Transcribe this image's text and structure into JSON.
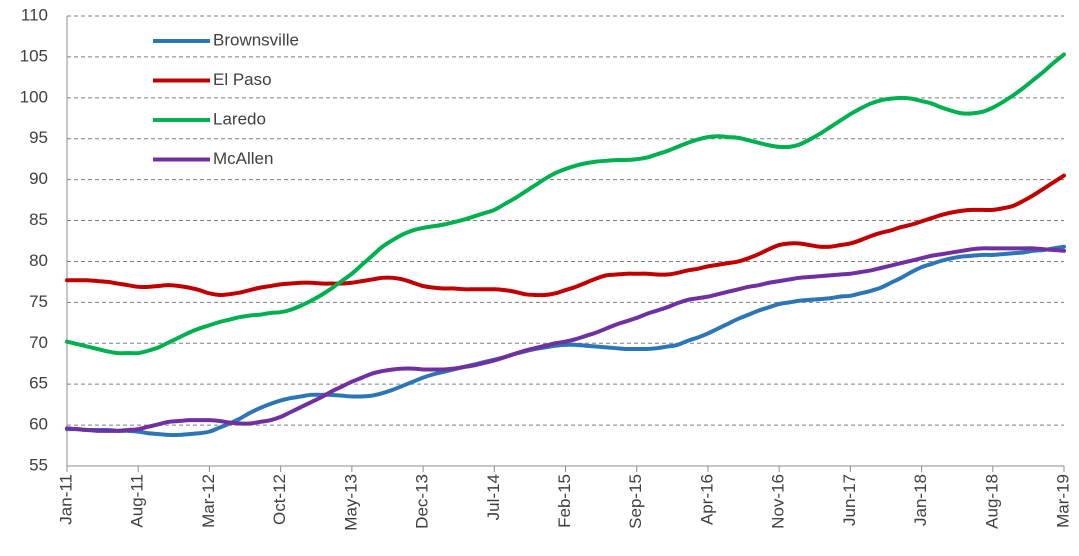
{
  "chart_data": {
    "type": "line",
    "categories": [
      "Jan-11",
      null,
      null,
      null,
      null,
      null,
      null,
      "Aug-11",
      null,
      null,
      null,
      null,
      null,
      null,
      "Mar-12",
      null,
      null,
      null,
      null,
      null,
      null,
      "Oct-12",
      null,
      null,
      null,
      null,
      null,
      null,
      "May-13",
      null,
      null,
      null,
      null,
      null,
      null,
      "Dec-13",
      null,
      null,
      null,
      null,
      null,
      null,
      "Jul-14",
      null,
      null,
      null,
      null,
      null,
      null,
      "Feb-15",
      null,
      null,
      null,
      null,
      null,
      null,
      "Sep-15",
      null,
      null,
      null,
      null,
      null,
      null,
      "Apr-16",
      null,
      null,
      null,
      null,
      null,
      null,
      "Nov-16",
      null,
      null,
      null,
      null,
      null,
      null,
      "Jun-17",
      null,
      null,
      null,
      null,
      null,
      null,
      "Jan-18",
      null,
      null,
      null,
      null,
      null,
      null,
      "Aug-18",
      null,
      null,
      null,
      null,
      null,
      null,
      "Mar-19"
    ],
    "series": [
      {
        "name": "Brownsville",
        "color": "#2e75b6",
        "values": [
          59.5,
          59.5,
          59.4,
          59.4,
          59.4,
          59.3,
          59.3,
          59.2,
          59.0,
          58.9,
          58.8,
          58.8,
          58.9,
          59.0,
          59.2,
          59.7,
          60.2,
          60.8,
          61.5,
          62.1,
          62.6,
          63.0,
          63.3,
          63.5,
          63.7,
          63.7,
          63.7,
          63.6,
          63.5,
          63.5,
          63.6,
          63.9,
          64.3,
          64.8,
          65.3,
          65.8,
          66.2,
          66.5,
          66.8,
          67.1,
          67.4,
          67.7,
          68.0,
          68.3,
          68.7,
          69.0,
          69.3,
          69.5,
          69.7,
          69.8,
          69.8,
          69.7,
          69.6,
          69.5,
          69.4,
          69.3,
          69.3,
          69.3,
          69.4,
          69.6,
          69.8,
          70.3,
          70.7,
          71.2,
          71.8,
          72.4,
          73.0,
          73.5,
          74.0,
          74.4,
          74.8,
          75.0,
          75.2,
          75.3,
          75.4,
          75.5,
          75.7,
          75.8,
          76.1,
          76.4,
          76.8,
          77.4,
          78.0,
          78.7,
          79.3,
          79.7,
          80.1,
          80.4,
          80.6,
          80.7,
          80.8,
          80.8,
          80.9,
          81.0,
          81.1,
          81.3,
          81.4,
          81.6,
          81.8
        ]
      },
      {
        "name": "El Paso",
        "color": "#c00000",
        "values": [
          77.7,
          77.7,
          77.7,
          77.6,
          77.5,
          77.3,
          77.1,
          76.9,
          76.9,
          77.0,
          77.1,
          77.0,
          76.8,
          76.5,
          76.1,
          75.9,
          76.0,
          76.2,
          76.5,
          76.8,
          77.0,
          77.2,
          77.3,
          77.4,
          77.4,
          77.3,
          77.3,
          77.3,
          77.4,
          77.6,
          77.8,
          78.0,
          78.0,
          77.8,
          77.4,
          77.0,
          76.8,
          76.7,
          76.7,
          76.6,
          76.6,
          76.6,
          76.6,
          76.5,
          76.3,
          76.0,
          75.9,
          75.9,
          76.1,
          76.5,
          76.9,
          77.4,
          77.9,
          78.3,
          78.4,
          78.5,
          78.5,
          78.5,
          78.4,
          78.4,
          78.6,
          78.9,
          79.1,
          79.4,
          79.6,
          79.8,
          80.0,
          80.4,
          80.9,
          81.5,
          82.0,
          82.2,
          82.2,
          82.0,
          81.8,
          81.8,
          82.0,
          82.2,
          82.6,
          83.1,
          83.5,
          83.8,
          84.2,
          84.5,
          84.9,
          85.3,
          85.7,
          86.0,
          86.2,
          86.3,
          86.3,
          86.3,
          86.5,
          86.8,
          87.4,
          88.1,
          88.9,
          89.7,
          90.5
        ]
      },
      {
        "name": "Laredo",
        "color": "#00b050",
        "values": [
          70.2,
          69.9,
          69.6,
          69.3,
          69.0,
          68.8,
          68.8,
          68.8,
          69.1,
          69.5,
          70.1,
          70.7,
          71.3,
          71.8,
          72.2,
          72.6,
          72.9,
          73.2,
          73.4,
          73.5,
          73.7,
          73.8,
          74.1,
          74.6,
          75.2,
          75.9,
          76.7,
          77.6,
          78.5,
          79.6,
          80.7,
          81.8,
          82.6,
          83.3,
          83.8,
          84.1,
          84.3,
          84.5,
          84.8,
          85.1,
          85.5,
          85.9,
          86.3,
          87.0,
          87.7,
          88.5,
          89.3,
          90.1,
          90.8,
          91.3,
          91.7,
          92.0,
          92.2,
          92.3,
          92.4,
          92.4,
          92.5,
          92.7,
          93.1,
          93.5,
          94.0,
          94.5,
          94.9,
          95.2,
          95.3,
          95.2,
          95.1,
          94.8,
          94.5,
          94.2,
          94.0,
          94.0,
          94.3,
          94.9,
          95.6,
          96.4,
          97.2,
          98.0,
          98.7,
          99.3,
          99.7,
          99.9,
          100.0,
          99.9,
          99.6,
          99.3,
          98.8,
          98.4,
          98.1,
          98.1,
          98.3,
          98.8,
          99.5,
          100.3,
          101.2,
          102.2,
          103.2,
          104.3,
          105.3
        ]
      },
      {
        "name": "McAllen",
        "color": "#7030a0",
        "values": [
          59.6,
          59.5,
          59.4,
          59.3,
          59.3,
          59.3,
          59.4,
          59.5,
          59.8,
          60.1,
          60.4,
          60.5,
          60.6,
          60.6,
          60.6,
          60.5,
          60.3,
          60.2,
          60.2,
          60.4,
          60.6,
          61.0,
          61.6,
          62.2,
          62.8,
          63.4,
          64.1,
          64.7,
          65.3,
          65.8,
          66.3,
          66.6,
          66.8,
          66.9,
          66.9,
          66.8,
          66.8,
          66.8,
          66.9,
          67.1,
          67.3,
          67.6,
          67.9,
          68.3,
          68.7,
          69.1,
          69.4,
          69.7,
          70.0,
          70.2,
          70.5,
          70.9,
          71.3,
          71.8,
          72.3,
          72.7,
          73.1,
          73.6,
          74.0,
          74.4,
          74.9,
          75.3,
          75.5,
          75.7,
          76.0,
          76.3,
          76.6,
          76.9,
          77.1,
          77.4,
          77.6,
          77.8,
          78.0,
          78.1,
          78.2,
          78.3,
          78.4,
          78.5,
          78.7,
          78.9,
          79.2,
          79.5,
          79.8,
          80.1,
          80.4,
          80.7,
          80.9,
          81.1,
          81.3,
          81.5,
          81.6,
          81.6,
          81.6,
          81.6,
          81.6,
          81.6,
          81.5,
          81.4,
          81.3
        ]
      }
    ],
    "ylim": [
      55,
      110
    ],
    "yticks": [
      55,
      60,
      65,
      70,
      75,
      80,
      85,
      90,
      95,
      100,
      105,
      110
    ],
    "grid": true,
    "legend": "upper-left"
  }
}
